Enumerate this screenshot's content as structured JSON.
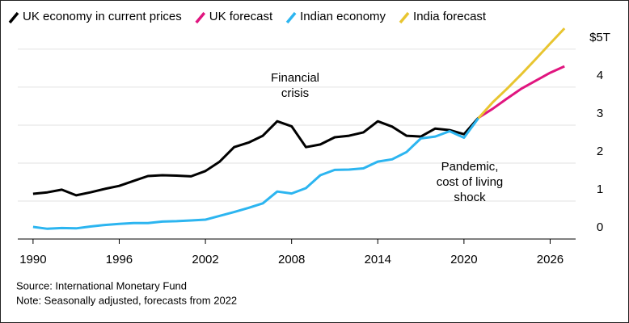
{
  "chart_data": {
    "type": "line",
    "x": [
      1990,
      1991,
      1992,
      1993,
      1994,
      1995,
      1996,
      1997,
      1998,
      1999,
      2000,
      2001,
      2002,
      2003,
      2004,
      2005,
      2006,
      2007,
      2008,
      2009,
      2010,
      2011,
      2012,
      2013,
      2014,
      2015,
      2016,
      2017,
      2018,
      2019,
      2020,
      2021,
      2022,
      2023,
      2024,
      2025,
      2026,
      2027
    ],
    "series": [
      {
        "name": "UK economy in current prices",
        "color": "#000000",
        "values": [
          1.19,
          1.23,
          1.3,
          1.15,
          1.23,
          1.32,
          1.4,
          1.53,
          1.66,
          1.68,
          1.67,
          1.65,
          1.79,
          2.04,
          2.42,
          2.54,
          2.72,
          3.1,
          2.97,
          2.42,
          2.49,
          2.68,
          2.72,
          2.81,
          3.1,
          2.96,
          2.72,
          2.7,
          2.91,
          2.87,
          2.76,
          3.19,
          null,
          null,
          null,
          null,
          null,
          null
        ]
      },
      {
        "name": "UK forecast",
        "color": "#e0157f",
        "values": [
          null,
          null,
          null,
          null,
          null,
          null,
          null,
          null,
          null,
          null,
          null,
          null,
          null,
          null,
          null,
          null,
          null,
          null,
          null,
          null,
          null,
          null,
          null,
          null,
          null,
          null,
          null,
          null,
          null,
          null,
          null,
          3.19,
          3.43,
          3.7,
          3.96,
          4.17,
          4.38,
          4.55
        ]
      },
      {
        "name": "Indian economy",
        "color": "#2cb5f0",
        "values": [
          0.32,
          0.27,
          0.29,
          0.28,
          0.33,
          0.37,
          0.4,
          0.42,
          0.42,
          0.46,
          0.47,
          0.49,
          0.51,
          0.61,
          0.71,
          0.82,
          0.94,
          1.25,
          1.2,
          1.34,
          1.68,
          1.82,
          1.83,
          1.86,
          2.04,
          2.1,
          2.29,
          2.65,
          2.7,
          2.84,
          2.67,
          3.18,
          null,
          null,
          null,
          null,
          null,
          null
        ]
      },
      {
        "name": "India forecast",
        "color": "#e8c530",
        "values": [
          null,
          null,
          null,
          null,
          null,
          null,
          null,
          null,
          null,
          null,
          null,
          null,
          null,
          null,
          null,
          null,
          null,
          null,
          null,
          null,
          null,
          null,
          null,
          null,
          null,
          null,
          null,
          null,
          null,
          null,
          null,
          3.18,
          3.6,
          3.96,
          4.34,
          4.74,
          5.15,
          5.55
        ]
      }
    ],
    "xlim": [
      1989.5,
      2028
    ],
    "xticks": [
      1990,
      1996,
      2002,
      2008,
      2014,
      2020,
      2026
    ],
    "ylim": [
      0,
      5.7
    ],
    "yticks": [
      0,
      1,
      2,
      3,
      4,
      {
        "value": 5,
        "label": "$5T"
      }
    ],
    "grid": true,
    "annotations": [
      {
        "lines": [
          "Financial",
          "crisis"
        ]
      },
      {
        "lines": [
          "Pandemic,",
          "cost of living",
          "shock"
        ]
      }
    ],
    "source": "Source: International Monetary Fund",
    "note": "Note: Seasonally adjusted, forecasts from 2022"
  }
}
